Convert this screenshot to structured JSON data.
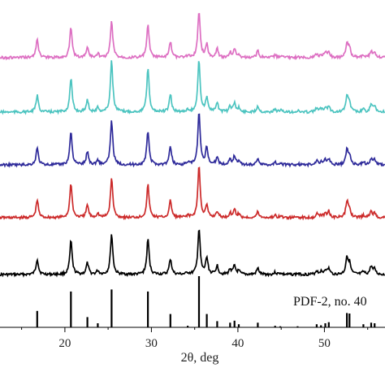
{
  "chart_data": {
    "type": "line",
    "xlabel": "2θ, deg",
    "ylabel": "",
    "xlim": [
      12.5,
      57
    ],
    "x_ticks": [
      20,
      30,
      40,
      50
    ],
    "grid": false,
    "legend": "none",
    "peaks": [
      {
        "x": 16.8,
        "ref": 0.32
      },
      {
        "x": 20.7,
        "ref": 0.7
      },
      {
        "x": 22.6,
        "ref": 0.2
      },
      {
        "x": 23.8,
        "ref": 0.08
      },
      {
        "x": 25.4,
        "ref": 0.74
      },
      {
        "x": 29.6,
        "ref": 0.7
      },
      {
        "x": 32.2,
        "ref": 0.26
      },
      {
        "x": 34.2,
        "ref": 0.03
      },
      {
        "x": 35.5,
        "ref": 1.0
      },
      {
        "x": 36.4,
        "ref": 0.26
      },
      {
        "x": 37.6,
        "ref": 0.12
      },
      {
        "x": 39.1,
        "ref": 0.09
      },
      {
        "x": 39.6,
        "ref": 0.13
      },
      {
        "x": 40.1,
        "ref": 0.06
      },
      {
        "x": 42.3,
        "ref": 0.09
      },
      {
        "x": 44.3,
        "ref": 0.03
      },
      {
        "x": 44.9,
        "ref": 0.02
      },
      {
        "x": 46.9,
        "ref": 0.02
      },
      {
        "x": 49.1,
        "ref": 0.06
      },
      {
        "x": 49.6,
        "ref": 0.04
      },
      {
        "x": 50.1,
        "ref": 0.08
      },
      {
        "x": 50.5,
        "ref": 0.1
      },
      {
        "x": 52.6,
        "ref": 0.28
      },
      {
        "x": 52.9,
        "ref": 0.27
      },
      {
        "x": 54.5,
        "ref": 0.06
      },
      {
        "x": 55.4,
        "ref": 0.09
      },
      {
        "x": 55.8,
        "ref": 0.08
      }
    ],
    "series": [
      {
        "color": "#000000",
        "values": [
          0.3,
          0.65,
          0.22,
          0.07,
          0.78,
          0.68,
          0.3,
          0.03,
          0.88,
          0.32,
          0.17,
          0.1,
          0.16,
          0.06,
          0.12,
          0.04,
          0.03,
          0.02,
          0.07,
          0.05,
          0.09,
          0.11,
          0.33,
          0.2,
          0.05,
          0.16,
          0.1
        ]
      },
      {
        "color": "#cc2a2a",
        "values": [
          0.34,
          0.66,
          0.24,
          0.08,
          0.76,
          0.63,
          0.33,
          0.04,
          1.0,
          0.22,
          0.12,
          0.08,
          0.16,
          0.06,
          0.11,
          0.04,
          0.03,
          0.02,
          0.07,
          0.05,
          0.08,
          0.12,
          0.3,
          0.17,
          0.04,
          0.12,
          0.08
        ]
      },
      {
        "color": "#2e2a9a",
        "values": [
          0.32,
          0.64,
          0.25,
          0.09,
          0.86,
          0.65,
          0.35,
          0.05,
          1.0,
          0.34,
          0.15,
          0.1,
          0.17,
          0.07,
          0.13,
          0.05,
          0.04,
          0.02,
          0.08,
          0.06,
          0.09,
          0.11,
          0.28,
          0.17,
          0.05,
          0.12,
          0.1
        ]
      },
      {
        "color": "#4cc4c0",
        "values": [
          0.32,
          0.65,
          0.23,
          0.08,
          1.0,
          0.84,
          0.33,
          0.05,
          1.0,
          0.28,
          0.17,
          0.1,
          0.17,
          0.07,
          0.12,
          0.05,
          0.04,
          0.02,
          0.07,
          0.06,
          0.09,
          0.11,
          0.3,
          0.18,
          0.05,
          0.14,
          0.1
        ]
      },
      {
        "color": "#dd6fc2",
        "values": [
          0.37,
          0.58,
          0.2,
          0.08,
          0.7,
          0.63,
          0.3,
          0.04,
          0.9,
          0.25,
          0.17,
          0.1,
          0.16,
          0.06,
          0.13,
          0.04,
          0.03,
          0.02,
          0.07,
          0.05,
          0.09,
          0.11,
          0.28,
          0.17,
          0.04,
          0.13,
          0.09
        ]
      }
    ],
    "reference_label": "PDF-2, no. 40"
  }
}
